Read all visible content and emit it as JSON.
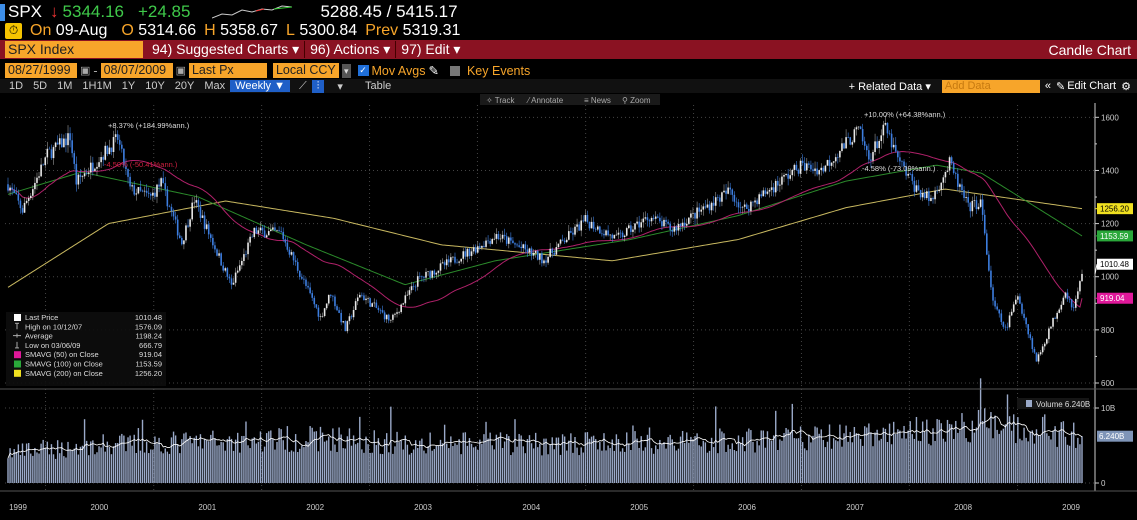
{
  "quote": {
    "ticker": "SPX",
    "arrow": "↓",
    "last": "5344.16",
    "change": "+24.85",
    "range": "5288.45 / 5415.17",
    "on_label": "On",
    "date": "09-Aug",
    "o_label": "O",
    "open": "5314.66",
    "h_label": "H",
    "high": "5358.67",
    "l_label": "L",
    "low": "5300.84",
    "prev_label": "Prev",
    "prev": "5319.31"
  },
  "menu": {
    "security": "SPX Index",
    "suggested": "94) Suggested Charts ▾",
    "actions": "96) Actions ▾",
    "edit": "97) Edit ▾",
    "chart_type": "Candle Chart"
  },
  "controls": {
    "start_date": "08/27/1999",
    "end_date": "08/07/2009",
    "field": "Last Px",
    "currency": "Local CCY",
    "mov_avgs": "Mov Avgs",
    "key_events": "Key Events"
  },
  "toolbar": {
    "periods": [
      "1D",
      "5D",
      "1M",
      "1H1M",
      "1Y",
      "10Y",
      "20Y",
      "Max"
    ],
    "frequency": "Weekly ▼",
    "table": "Table",
    "related": "+ Related Data ▾",
    "add_data_placeholder": "Add Data",
    "edit_chart": "Edit Chart",
    "track": "Track",
    "annotate": "Annotate",
    "news": "News",
    "zoom": "Zoom"
  },
  "legend": [
    {
      "label": "Last Price",
      "value": "1010.48",
      "color": "#ffffff"
    },
    {
      "label": "High on 10/12/07",
      "value": "1576.09"
    },
    {
      "label": "Average",
      "value": "1198.24"
    },
    {
      "label": "Low on 03/06/09",
      "value": "666.79"
    },
    {
      "label": "SMAVG (50)  on Close",
      "value": "919.04",
      "color": "#e0189a"
    },
    {
      "label": "SMAVG (100)  on Close",
      "value": "1153.59",
      "color": "#2aa83a"
    },
    {
      "label": "SMAVG (200)  on Close",
      "value": "1256.20",
      "color": "#f0e020"
    }
  ],
  "annotations": [
    "+8.37% (+184.99%ann.)",
    "-4.50% (-50.41%ann.)",
    "+10.00% (+64.38%ann.)",
    "-4.58% (-73.09%ann.)"
  ],
  "volume_legend": "Volume 6.240B",
  "chart_data": {
    "type": "candlestick",
    "frequency": "weekly",
    "x_range": [
      "1999-08-27",
      "2009-08-07"
    ],
    "x_ticks": [
      "1999",
      "2000",
      "2001",
      "2002",
      "2003",
      "2004",
      "2005",
      "2006",
      "2007",
      "2008",
      "2009"
    ],
    "price_ylim": [
      600,
      1620
    ],
    "price_ticks": [
      "600",
      "800",
      "1000",
      "1200",
      "1400",
      "1600"
    ],
    "close_keypoints": [
      [
        "1999-08-27",
        1348
      ],
      [
        "1999-10-15",
        1250
      ],
      [
        "2000-01-07",
        1460
      ],
      [
        "2000-03-24",
        1527
      ],
      [
        "2000-04-14",
        1356
      ],
      [
        "2000-09-01",
        1520
      ],
      [
        "2000-10-13",
        1330
      ],
      [
        "2000-12-22",
        1300
      ],
      [
        "2001-01-26",
        1354
      ],
      [
        "2001-04-06",
        1128
      ],
      [
        "2001-05-18",
        1290
      ],
      [
        "2001-09-21",
        966
      ],
      [
        "2001-12-07",
        1170
      ],
      [
        "2002-03-08",
        1164
      ],
      [
        "2002-07-19",
        847
      ],
      [
        "2002-08-23",
        940
      ],
      [
        "2002-10-11",
        800
      ],
      [
        "2002-11-29",
        936
      ],
      [
        "2003-03-14",
        833
      ],
      [
        "2003-06-13",
        988
      ],
      [
        "2003-12-31",
        1112
      ],
      [
        "2004-03-05",
        1156
      ],
      [
        "2004-08-13",
        1064
      ],
      [
        "2004-12-31",
        1212
      ],
      [
        "2005-04-15",
        1142
      ],
      [
        "2005-08-05",
        1226
      ],
      [
        "2005-10-21",
        1177
      ],
      [
        "2006-05-05",
        1325
      ],
      [
        "2006-06-16",
        1251
      ],
      [
        "2006-12-29",
        1418
      ],
      [
        "2007-03-09",
        1402
      ],
      [
        "2007-07-13",
        1552
      ],
      [
        "2007-08-17",
        1445
      ],
      [
        "2007-10-12",
        1561
      ],
      [
        "2007-11-23",
        1440
      ],
      [
        "2008-01-25",
        1330
      ],
      [
        "2008-03-14",
        1288
      ],
      [
        "2008-05-16",
        1425
      ],
      [
        "2008-07-18",
        1260
      ],
      [
        "2008-08-29",
        1282
      ],
      [
        "2008-10-10",
        899
      ],
      [
        "2008-11-21",
        800
      ],
      [
        "2009-01-02",
        931
      ],
      [
        "2009-03-06",
        683
      ],
      [
        "2009-06-12",
        946
      ],
      [
        "2009-07-10",
        880
      ],
      [
        "2009-08-07",
        1010.48
      ]
    ],
    "sma100_keypoints": [
      [
        "1999-08-27",
        1310
      ],
      [
        "2000-05-01",
        1394
      ],
      [
        "2001-06-01",
        1300
      ],
      [
        "2002-06-01",
        1120
      ],
      [
        "2003-05-01",
        970
      ],
      [
        "2004-03-01",
        1060
      ],
      [
        "2005-06-01",
        1140
      ],
      [
        "2006-06-01",
        1230
      ],
      [
        "2007-06-01",
        1360
      ],
      [
        "2008-04-01",
        1420
      ],
      [
        "2008-09-01",
        1390
      ],
      [
        "2009-08-07",
        1153.59
      ]
    ],
    "sma200_keypoints": [
      [
        "1999-08-27",
        960
      ],
      [
        "2000-08-01",
        1200
      ],
      [
        "2001-09-01",
        1285
      ],
      [
        "2002-09-01",
        1220
      ],
      [
        "2003-09-01",
        1120
      ],
      [
        "2005-04-01",
        1060
      ],
      [
        "2006-06-01",
        1140
      ],
      [
        "2007-06-01",
        1260
      ],
      [
        "2008-05-01",
        1330
      ],
      [
        "2009-08-07",
        1256.2
      ]
    ],
    "series_last": {
      "last": 1010.48,
      "sma50": 919.04,
      "sma100": 1153.59,
      "sma200": 1256.2
    },
    "volume_ylim": [
      0,
      12
    ],
    "volume_ticks": [
      "0",
      "10B"
    ],
    "volume_unit": "B",
    "volume_keypoints": [
      [
        "1999-08-27",
        4.0
      ],
      [
        "2000-06-01",
        5.0
      ],
      [
        "2002-07-26",
        6.0
      ],
      [
        "2003-06-01",
        5.2
      ],
      [
        "2005-06-01",
        5.3
      ],
      [
        "2007-08-01",
        6.2
      ],
      [
        "2008-10-10",
        7.8
      ],
      [
        "2009-03-06",
        7.0
      ],
      [
        "2009-08-07",
        6.24
      ]
    ],
    "colors": {
      "up": "#e8e8e8",
      "down": "#3d7ee0",
      "sma50": "#b0216a",
      "sma100": "#2b8a2b",
      "sma200": "#c8b860",
      "volume": "#9aa9c8"
    }
  }
}
